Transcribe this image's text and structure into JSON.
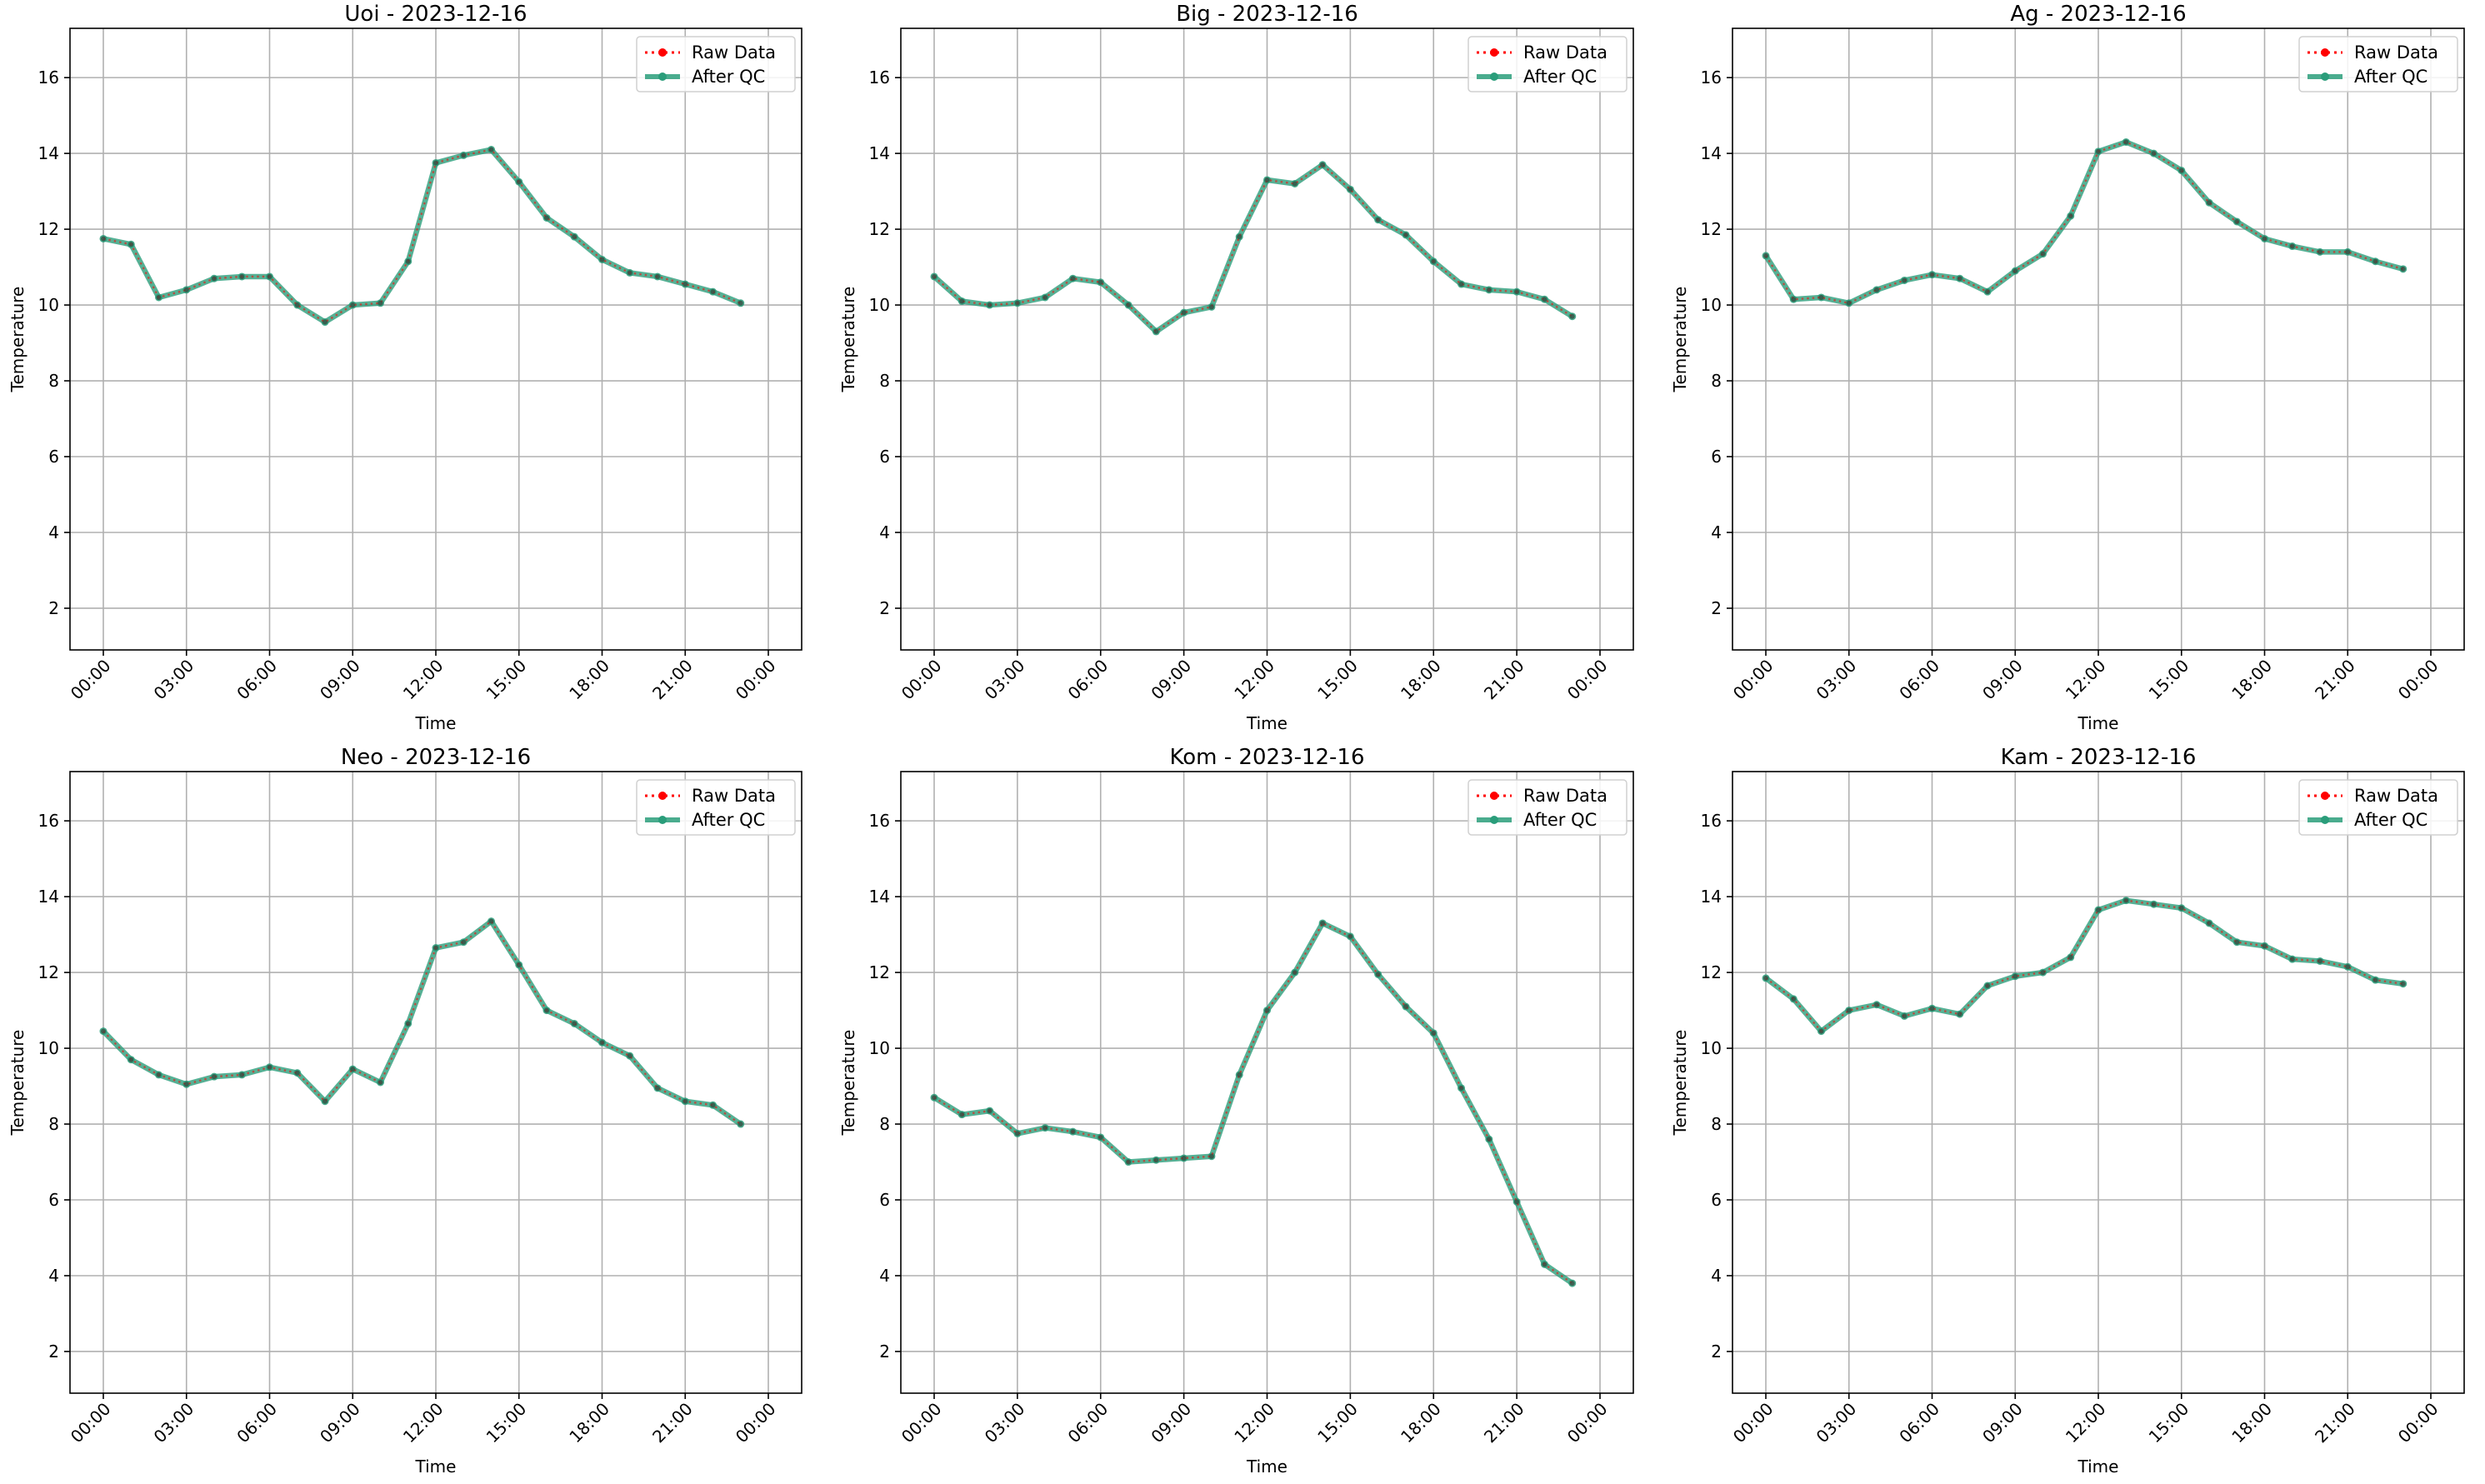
{
  "figure": {
    "series_names": {
      "raw": "Raw Data",
      "qc": "After QC"
    },
    "colors": {
      "raw": "#ff0000",
      "qc": "#2a9d7a",
      "grid": "#b0b0b0",
      "axes": "#000000"
    }
  },
  "chart_data": [
    {
      "type": "line",
      "title": "Uoi - 2023-12-16",
      "xlabel": "Time",
      "ylabel": "Temperature",
      "x": [
        "00:00",
        "01:00",
        "02:00",
        "03:00",
        "04:00",
        "05:00",
        "06:00",
        "07:00",
        "08:00",
        "09:00",
        "10:00",
        "11:00",
        "12:00",
        "13:00",
        "14:00",
        "15:00",
        "16:00",
        "17:00",
        "18:00",
        "19:00",
        "20:00",
        "21:00",
        "22:00",
        "23:00"
      ],
      "x_ticks": [
        "00:00",
        "03:00",
        "06:00",
        "09:00",
        "12:00",
        "15:00",
        "18:00",
        "21:00",
        "00:00"
      ],
      "y_ticks": [
        2,
        4,
        6,
        8,
        10,
        12,
        14,
        16
      ],
      "ylim": [
        0.9,
        17.3
      ],
      "grid": true,
      "legend_position": "top-right",
      "series": [
        {
          "name": "Raw Data",
          "values": [
            11.75,
            11.6,
            10.2,
            10.4,
            10.7,
            10.75,
            10.75,
            10.0,
            9.55,
            10.0,
            10.05,
            11.15,
            13.75,
            13.95,
            14.1,
            13.25,
            12.3,
            11.8,
            11.2,
            10.85,
            10.75,
            10.55,
            10.35,
            10.05
          ]
        },
        {
          "name": "After QC",
          "values": [
            11.75,
            11.6,
            10.2,
            10.4,
            10.7,
            10.75,
            10.75,
            10.0,
            9.55,
            10.0,
            10.05,
            11.15,
            13.75,
            13.95,
            14.1,
            13.25,
            12.3,
            11.8,
            11.2,
            10.85,
            10.75,
            10.55,
            10.35,
            10.05
          ]
        }
      ]
    },
    {
      "type": "line",
      "title": "Big - 2023-12-16",
      "xlabel": "Time",
      "ylabel": "Temperature",
      "x": [
        "00:00",
        "01:00",
        "02:00",
        "03:00",
        "04:00",
        "05:00",
        "06:00",
        "07:00",
        "08:00",
        "09:00",
        "10:00",
        "11:00",
        "12:00",
        "13:00",
        "14:00",
        "15:00",
        "16:00",
        "17:00",
        "18:00",
        "19:00",
        "20:00",
        "21:00",
        "22:00",
        "23:00"
      ],
      "x_ticks": [
        "00:00",
        "03:00",
        "06:00",
        "09:00",
        "12:00",
        "15:00",
        "18:00",
        "21:00",
        "00:00"
      ],
      "y_ticks": [
        2,
        4,
        6,
        8,
        10,
        12,
        14,
        16
      ],
      "ylim": [
        0.9,
        17.3
      ],
      "grid": true,
      "legend_position": "top-right",
      "series": [
        {
          "name": "Raw Data",
          "values": [
            10.75,
            10.1,
            10.0,
            10.05,
            10.2,
            10.7,
            10.6,
            10.0,
            9.3,
            9.8,
            9.95,
            11.8,
            13.3,
            13.2,
            13.7,
            13.05,
            12.25,
            11.85,
            11.15,
            10.55,
            10.4,
            10.35,
            10.15,
            9.7
          ]
        },
        {
          "name": "After QC",
          "values": [
            10.75,
            10.1,
            10.0,
            10.05,
            10.2,
            10.7,
            10.6,
            10.0,
            9.3,
            9.8,
            9.95,
            11.8,
            13.3,
            13.2,
            13.7,
            13.05,
            12.25,
            11.85,
            11.15,
            10.55,
            10.4,
            10.35,
            10.15,
            9.7
          ]
        }
      ]
    },
    {
      "type": "line",
      "title": "Ag - 2023-12-16",
      "xlabel": "Time",
      "ylabel": "Temperature",
      "x": [
        "00:00",
        "01:00",
        "02:00",
        "03:00",
        "04:00",
        "05:00",
        "06:00",
        "07:00",
        "08:00",
        "09:00",
        "10:00",
        "11:00",
        "12:00",
        "13:00",
        "14:00",
        "15:00",
        "16:00",
        "17:00",
        "18:00",
        "19:00",
        "20:00",
        "21:00",
        "22:00",
        "23:00"
      ],
      "x_ticks": [
        "00:00",
        "03:00",
        "06:00",
        "09:00",
        "12:00",
        "15:00",
        "18:00",
        "21:00",
        "00:00"
      ],
      "y_ticks": [
        2,
        4,
        6,
        8,
        10,
        12,
        14,
        16
      ],
      "ylim": [
        0.9,
        17.3
      ],
      "grid": true,
      "legend_position": "top-right",
      "series": [
        {
          "name": "Raw Data",
          "values": [
            11.3,
            10.15,
            10.2,
            10.05,
            10.4,
            10.65,
            10.8,
            10.7,
            10.35,
            10.9,
            11.35,
            12.35,
            14.05,
            14.3,
            14.0,
            13.55,
            12.7,
            12.2,
            11.75,
            11.55,
            11.4,
            11.4,
            11.15,
            10.95
          ]
        },
        {
          "name": "After QC",
          "values": [
            11.3,
            10.15,
            10.2,
            10.05,
            10.4,
            10.65,
            10.8,
            10.7,
            10.35,
            10.9,
            11.35,
            12.35,
            14.05,
            14.3,
            14.0,
            13.55,
            12.7,
            12.2,
            11.75,
            11.55,
            11.4,
            11.4,
            11.15,
            10.95
          ]
        }
      ]
    },
    {
      "type": "line",
      "title": "Neo - 2023-12-16",
      "xlabel": "Time",
      "ylabel": "Temperature",
      "x": [
        "00:00",
        "01:00",
        "02:00",
        "03:00",
        "04:00",
        "05:00",
        "06:00",
        "07:00",
        "08:00",
        "09:00",
        "10:00",
        "11:00",
        "12:00",
        "13:00",
        "14:00",
        "15:00",
        "16:00",
        "17:00",
        "18:00",
        "19:00",
        "20:00",
        "21:00",
        "22:00",
        "23:00"
      ],
      "x_ticks": [
        "00:00",
        "03:00",
        "06:00",
        "09:00",
        "12:00",
        "15:00",
        "18:00",
        "21:00",
        "00:00"
      ],
      "y_ticks": [
        2,
        4,
        6,
        8,
        10,
        12,
        14,
        16
      ],
      "ylim": [
        0.9,
        17.3
      ],
      "grid": true,
      "legend_position": "top-right",
      "series": [
        {
          "name": "Raw Data",
          "values": [
            10.45,
            9.7,
            9.3,
            9.05,
            9.25,
            9.3,
            9.5,
            9.35,
            8.6,
            9.45,
            9.1,
            10.65,
            12.65,
            12.8,
            13.35,
            12.2,
            11.0,
            10.65,
            10.15,
            9.8,
            8.95,
            8.6,
            8.5,
            8.0
          ]
        },
        {
          "name": "After QC",
          "values": [
            10.45,
            9.7,
            9.3,
            9.05,
            9.25,
            9.3,
            9.5,
            9.35,
            8.6,
            9.45,
            9.1,
            10.65,
            12.65,
            12.8,
            13.35,
            12.2,
            11.0,
            10.65,
            10.15,
            9.8,
            8.95,
            8.6,
            8.5,
            8.0
          ]
        }
      ]
    },
    {
      "type": "line",
      "title": "Kom - 2023-12-16",
      "xlabel": "Time",
      "ylabel": "Temperature",
      "x": [
        "00:00",
        "01:00",
        "02:00",
        "03:00",
        "04:00",
        "05:00",
        "06:00",
        "07:00",
        "08:00",
        "09:00",
        "10:00",
        "11:00",
        "12:00",
        "13:00",
        "14:00",
        "15:00",
        "16:00",
        "17:00",
        "18:00",
        "19:00",
        "20:00",
        "21:00",
        "22:00",
        "23:00"
      ],
      "x_ticks": [
        "00:00",
        "03:00",
        "06:00",
        "09:00",
        "12:00",
        "15:00",
        "18:00",
        "21:00",
        "00:00"
      ],
      "y_ticks": [
        2,
        4,
        6,
        8,
        10,
        12,
        14,
        16
      ],
      "ylim": [
        0.9,
        17.3
      ],
      "grid": true,
      "legend_position": "top-right",
      "series": [
        {
          "name": "Raw Data",
          "values": [
            8.7,
            8.25,
            8.35,
            7.75,
            7.9,
            7.8,
            7.65,
            7.0,
            7.05,
            7.1,
            7.15,
            9.3,
            11.0,
            12.0,
            13.3,
            12.95,
            11.95,
            11.1,
            10.4,
            8.95,
            7.6,
            5.95,
            4.3,
            3.8
          ]
        },
        {
          "name": "After QC",
          "values": [
            8.7,
            8.25,
            8.35,
            7.75,
            7.9,
            7.8,
            7.65,
            7.0,
            7.05,
            7.1,
            7.15,
            9.3,
            11.0,
            12.0,
            13.3,
            12.95,
            11.95,
            11.1,
            10.4,
            8.95,
            7.6,
            5.95,
            4.3,
            3.8
          ]
        }
      ]
    },
    {
      "type": "line",
      "title": "Kam - 2023-12-16",
      "xlabel": "Time",
      "ylabel": "Temperature",
      "x": [
        "00:00",
        "01:00",
        "02:00",
        "03:00",
        "04:00",
        "05:00",
        "06:00",
        "07:00",
        "08:00",
        "09:00",
        "10:00",
        "11:00",
        "12:00",
        "13:00",
        "14:00",
        "15:00",
        "16:00",
        "17:00",
        "18:00",
        "19:00",
        "20:00",
        "21:00",
        "22:00",
        "23:00"
      ],
      "x_ticks": [
        "00:00",
        "03:00",
        "06:00",
        "09:00",
        "12:00",
        "15:00",
        "18:00",
        "21:00",
        "00:00"
      ],
      "y_ticks": [
        2,
        4,
        6,
        8,
        10,
        12,
        14,
        16
      ],
      "ylim": [
        0.9,
        17.3
      ],
      "grid": true,
      "legend_position": "top-right",
      "series": [
        {
          "name": "Raw Data",
          "values": [
            11.85,
            11.3,
            10.45,
            11.0,
            11.15,
            10.85,
            11.05,
            10.9,
            11.65,
            11.9,
            12.0,
            12.4,
            13.65,
            13.9,
            13.8,
            13.7,
            13.3,
            12.8,
            12.7,
            12.35,
            12.3,
            12.15,
            11.8,
            11.7
          ]
        },
        {
          "name": "After QC",
          "values": [
            11.85,
            11.3,
            10.45,
            11.0,
            11.15,
            10.85,
            11.05,
            10.9,
            11.65,
            11.9,
            12.0,
            12.4,
            13.65,
            13.9,
            13.8,
            13.7,
            13.3,
            12.8,
            12.7,
            12.35,
            12.3,
            12.15,
            11.8,
            11.7
          ]
        }
      ]
    }
  ]
}
